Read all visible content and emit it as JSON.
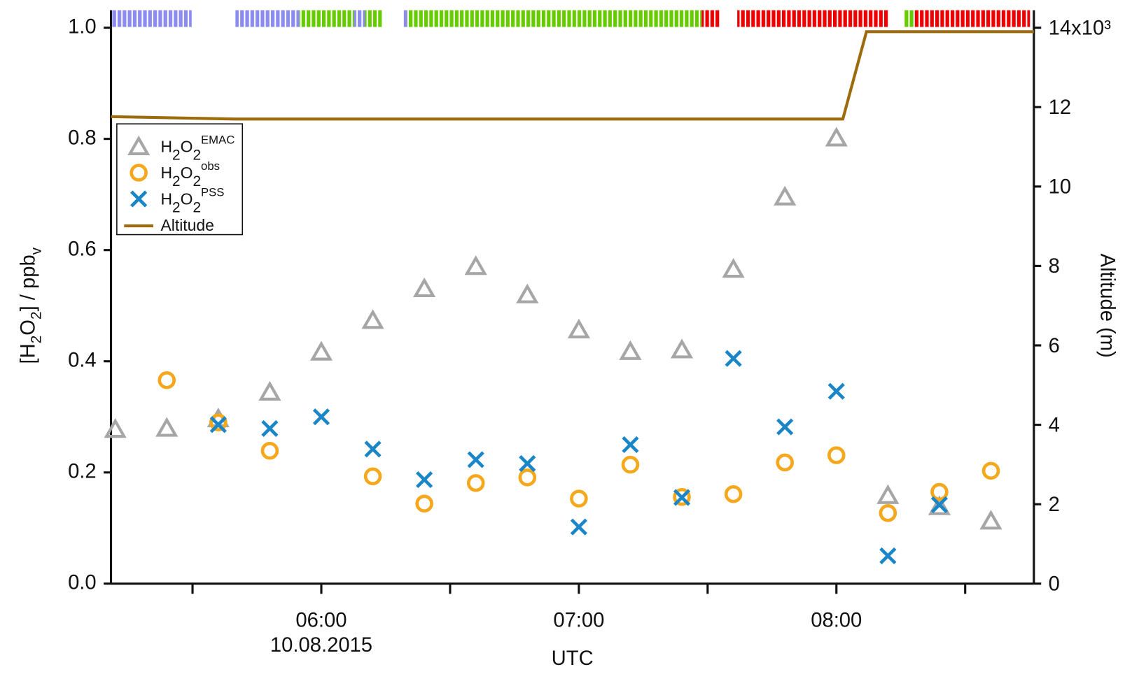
{
  "chart_data": {
    "type": "scatter",
    "xlabel": "UTC",
    "date_label": "10.08.2015",
    "ylabel": "[H2O2] / ppb",
    "ylabel_sub": "v",
    "y2label": "Altitude (m)",
    "xlim": [
      311,
      526
    ],
    "xticks": [
      {
        "value": 360,
        "label": "06:00"
      },
      {
        "value": 420,
        "label": "07:00"
      },
      {
        "value": 480,
        "label": "08:00"
      }
    ],
    "xminorticks": [
      330,
      390,
      450,
      510
    ],
    "ylim": [
      0,
      1.0
    ],
    "yticks": [
      {
        "value": 0,
        "label": "0.0"
      },
      0.2,
      0.4,
      0.6,
      0.8,
      {
        "value": 1.0,
        "label": "1.0"
      }
    ],
    "y2lim": [
      0,
      14000
    ],
    "y2ticks": [
      0,
      {
        "value": 2000,
        "label": "2"
      },
      {
        "value": 4000,
        "label": "4"
      },
      {
        "value": 6000,
        "label": "6"
      },
      {
        "value": 8000,
        "label": "8"
      },
      {
        "value": 10000,
        "label": "10"
      },
      {
        "value": 12000,
        "label": "12"
      },
      {
        "value": 14000,
        "label": "14x10³"
      }
    ],
    "legend": "upper left",
    "series": [
      {
        "name": "H2O2",
        "name_sup": "EMAC",
        "marker": "triangle",
        "color": "#a6a6a6",
        "x": [
          312,
          324,
          336,
          348,
          360,
          372,
          384,
          396,
          408,
          420,
          432,
          444,
          456,
          468,
          480,
          492,
          504,
          516
        ],
        "values": [
          0.278,
          0.28,
          0.297,
          0.345,
          0.417,
          0.474,
          0.531,
          0.571,
          0.52,
          0.457,
          0.418,
          0.421,
          0.566,
          0.696,
          0.802,
          0.159,
          0.139,
          0.113
        ]
      },
      {
        "name": "H2O2",
        "name_sup": "obs",
        "marker": "circle",
        "color": "#f5a81c",
        "x": [
          312,
          324,
          336,
          348,
          360,
          372,
          384,
          396,
          408,
          420,
          432,
          444,
          456,
          468,
          480,
          492,
          504,
          516
        ],
        "values": [
          null,
          0.366,
          0.29,
          0.239,
          null,
          0.193,
          0.144,
          0.181,
          0.191,
          0.153,
          0.214,
          0.156,
          0.161,
          0.218,
          0.231,
          0.127,
          0.165,
          0.203
        ]
      },
      {
        "name": "H2O2",
        "name_sup": "PSS",
        "marker": "x",
        "color": "#1a86c8",
        "x": [
          312,
          324,
          336,
          348,
          360,
          372,
          384,
          396,
          408,
          420,
          432,
          444,
          456,
          468,
          480,
          492,
          504,
          516
        ],
        "values": [
          null,
          null,
          0.286,
          0.279,
          0.3,
          0.242,
          0.187,
          0.223,
          0.216,
          0.102,
          0.25,
          0.155,
          0.405,
          0.282,
          0.346,
          0.05,
          0.142,
          null
        ]
      },
      {
        "name": "Altitude",
        "marker": "line",
        "color": "#9c6b0c",
        "axis": "y2",
        "x": [
          311,
          340,
          481.5,
          487,
          526
        ],
        "values": [
          11760,
          11700,
          11700,
          13900,
          13900
        ]
      }
    ],
    "strip": [
      {
        "start": 310.8,
        "end": 329.8,
        "color": "#8c8cf0"
      },
      {
        "start": 340,
        "end": 354.9,
        "color": "#8c8cf0"
      },
      {
        "start": 354.9,
        "end": 367.6,
        "color": "#66cc00"
      },
      {
        "start": 367.6,
        "end": 370.2,
        "color": "#8c8cf0"
      },
      {
        "start": 370.2,
        "end": 374.1,
        "color": "#66cc00"
      },
      {
        "start": 379.2,
        "end": 380,
        "color": "#8c8cf0"
      },
      {
        "start": 380,
        "end": 448.6,
        "color": "#66cc00"
      },
      {
        "start": 448.6,
        "end": 452.7,
        "color": "#ee0000"
      },
      {
        "start": 456.9,
        "end": 492.2,
        "color": "#ee0000"
      },
      {
        "start": 495.6,
        "end": 498.1,
        "color": "#66cc00"
      },
      {
        "start": 498.1,
        "end": 525.1,
        "color": "#ee0000"
      }
    ]
  }
}
